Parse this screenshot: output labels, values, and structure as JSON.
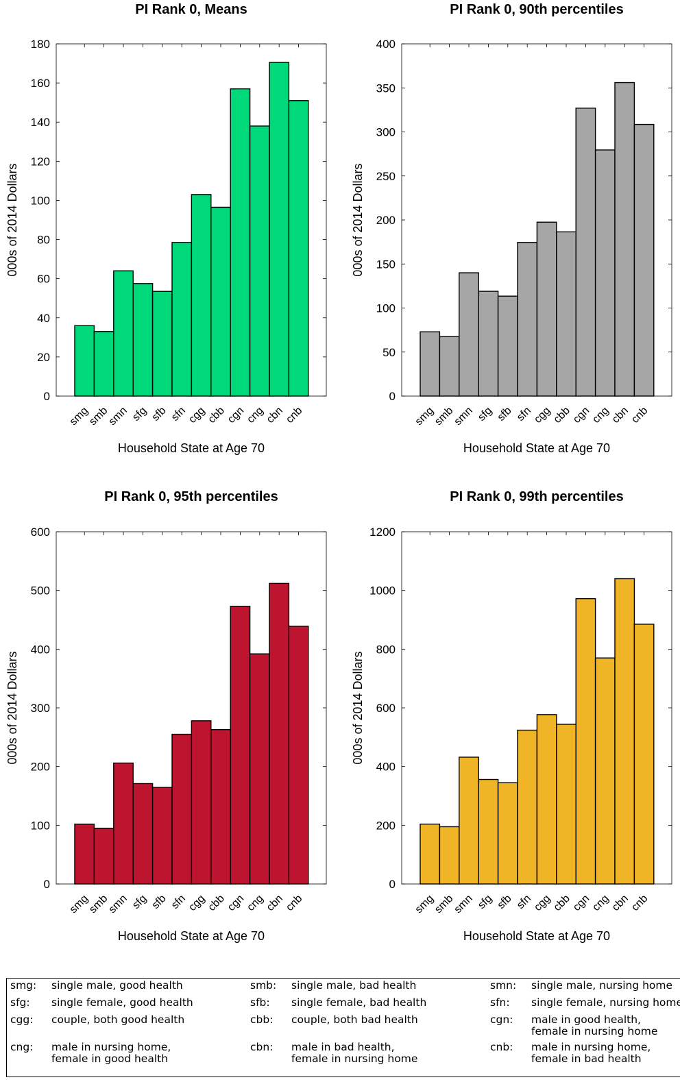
{
  "chart_data": [
    {
      "type": "bar",
      "title": "PI Rank 0, Means",
      "xlabel": "Household State at Age 70",
      "ylabel": "000s of 2014 Dollars",
      "categories": [
        "smg",
        "smb",
        "smn",
        "sfg",
        "sfb",
        "sfn",
        "cgg",
        "cbb",
        "cgn",
        "cng",
        "cbn",
        "cnb"
      ],
      "values": [
        36,
        33,
        64,
        57.5,
        53.5,
        78.5,
        103,
        96.5,
        157,
        138,
        170.5,
        151
      ],
      "ylim": [
        0,
        180
      ],
      "yticks": [
        0,
        20,
        40,
        60,
        80,
        100,
        120,
        140,
        160,
        180
      ],
      "color": "#00d97a",
      "grid": false
    },
    {
      "type": "bar",
      "title": "PI Rank 0, 90th percentiles",
      "xlabel": "Household State at Age 70",
      "ylabel": "000s of 2014 Dollars",
      "categories": [
        "smg",
        "smb",
        "smn",
        "sfg",
        "sfb",
        "sfn",
        "cgg",
        "cbb",
        "cgn",
        "cng",
        "cbn",
        "cnb"
      ],
      "values": [
        73,
        67.5,
        140,
        119,
        113.5,
        174.5,
        197.5,
        186.5,
        327,
        279.5,
        356,
        308.5
      ],
      "ylim": [
        0,
        400
      ],
      "yticks": [
        0,
        50,
        100,
        150,
        200,
        250,
        300,
        350,
        400
      ],
      "color": "#a6a6a6",
      "grid": false
    },
    {
      "type": "bar",
      "title": "PI Rank 0, 95th percentiles",
      "xlabel": "Household State at Age 70",
      "ylabel": "000s of 2014 Dollars",
      "categories": [
        "smg",
        "smb",
        "smn",
        "sfg",
        "sfb",
        "sfn",
        "cgg",
        "cbb",
        "cgn",
        "cng",
        "cbn",
        "cnb"
      ],
      "values": [
        102,
        95,
        206,
        171,
        164.5,
        255,
        278,
        263,
        473,
        392,
        512,
        439
      ],
      "ylim": [
        0,
        600
      ],
      "yticks": [
        0,
        100,
        200,
        300,
        400,
        500,
        600
      ],
      "color": "#bd1530",
      "grid": false
    },
    {
      "type": "bar",
      "title": "PI Rank 0, 99th percentiles",
      "xlabel": "Household State at Age 70",
      "ylabel": "000s of 2014 Dollars",
      "categories": [
        "smg",
        "smb",
        "smn",
        "sfg",
        "sfb",
        "sfn",
        "cgg",
        "cbb",
        "cgn",
        "cng",
        "cbn",
        "cnb"
      ],
      "values": [
        204,
        195,
        432,
        356,
        345,
        524,
        577,
        544,
        972,
        770,
        1040,
        885
      ],
      "ylim": [
        0,
        1200
      ],
      "yticks": [
        0,
        200,
        400,
        600,
        800,
        1000,
        1200
      ],
      "color": "#efb526",
      "grid": false
    }
  ],
  "legend_table": [
    {
      "code": "smg:",
      "desc": "single male, good health"
    },
    {
      "code": "smb:",
      "desc": "single male, bad health"
    },
    {
      "code": "smn:",
      "desc": "single male, nursing home"
    },
    {
      "code": "sfg:",
      "desc": "single female, good health"
    },
    {
      "code": "sfb:",
      "desc": "single female, bad health"
    },
    {
      "code": "sfn:",
      "desc": "single female, nursing home"
    },
    {
      "code": "cgg:",
      "desc": "couple, both good health"
    },
    {
      "code": "cbb:",
      "desc": "couple, both bad health"
    },
    {
      "code": "cgn:",
      "desc": "male in good health,\nfemale in nursing home"
    },
    {
      "code": "cng:",
      "desc": "male in nursing home,\nfemale in good health"
    },
    {
      "code": "cbn:",
      "desc": "male in bad health,\nfemale in nursing home"
    },
    {
      "code": "cnb:",
      "desc": "male in nursing home,\nfemale in bad health"
    }
  ]
}
